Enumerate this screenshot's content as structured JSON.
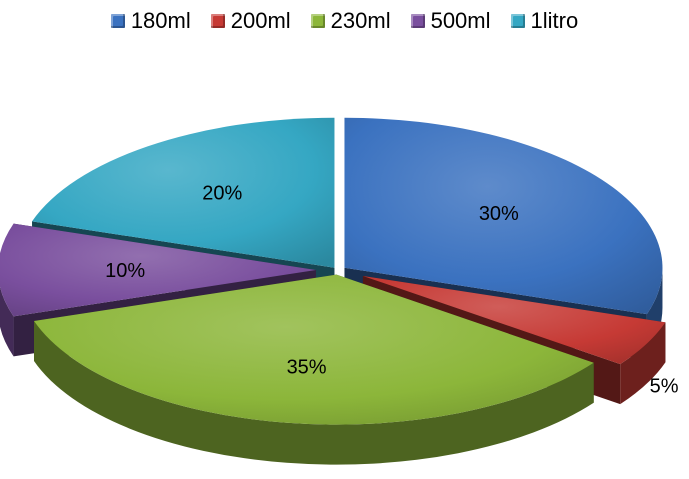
{
  "chart_data": {
    "type": "pie",
    "title": "",
    "categories": [
      "180ml",
      "200ml",
      "230ml",
      "500ml",
      "1litro"
    ],
    "values": [
      30,
      5,
      35,
      10,
      20
    ],
    "labels": [
      "30%",
      "5%",
      "35%",
      "10%",
      "20%"
    ],
    "colors": [
      "#3b72c0",
      "#c63a35",
      "#8cb63a",
      "#7a4f9e",
      "#35a7c3"
    ],
    "exploded": true,
    "style": "3d",
    "legend": "top"
  }
}
